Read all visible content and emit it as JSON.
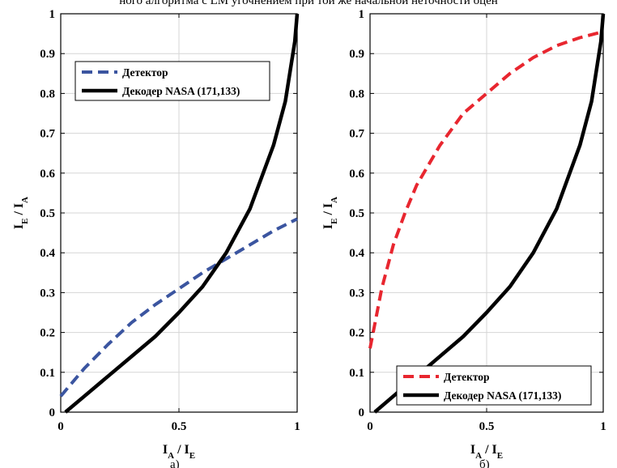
{
  "header_fragment": "ного алгоритма с LМ угочнением при той же начальной неточности оцен",
  "footer_fragments": [
    "а)",
    "б)"
  ],
  "chart_data": [
    {
      "type": "line",
      "xlabel": "I_A / I_E",
      "ylabel": "I_E / I_A",
      "xlim": [
        0,
        1
      ],
      "ylim": [
        0,
        1
      ],
      "xticks": [
        0,
        0.5,
        1
      ],
      "xtick_labels": [
        "0",
        "0.5",
        "1"
      ],
      "yticks": [
        0,
        0.1,
        0.2,
        0.3,
        0.4,
        0.5,
        0.6,
        0.7,
        0.8,
        0.9,
        1
      ],
      "ytick_labels": [
        "0",
        "0.1",
        "0.2",
        "0.3",
        "0.4",
        "0.5",
        "0.6",
        "0.7",
        "0.8",
        "0.9",
        "1"
      ],
      "grid": true,
      "legend_position": "top-left",
      "series": [
        {
          "name": "Детектор",
          "color": "#3b55a0",
          "style": "dashed",
          "x": [
            0,
            0.1,
            0.2,
            0.3,
            0.4,
            0.5,
            0.6,
            0.7,
            0.8,
            0.9,
            1.0
          ],
          "y": [
            0.04,
            0.11,
            0.17,
            0.225,
            0.27,
            0.31,
            0.35,
            0.385,
            0.42,
            0.455,
            0.485
          ]
        },
        {
          "name": "Декодер NASA (171,133)",
          "color": "#000000",
          "style": "solid",
          "x": [
            0.02,
            0.1,
            0.2,
            0.3,
            0.4,
            0.5,
            0.6,
            0.7,
            0.8,
            0.9,
            0.95,
            0.99,
            1.0
          ],
          "y": [
            0,
            0.04,
            0.09,
            0.14,
            0.19,
            0.25,
            0.315,
            0.4,
            0.51,
            0.67,
            0.78,
            0.93,
            1.0
          ]
        }
      ]
    },
    {
      "type": "line",
      "xlabel": "I_A / I_E",
      "ylabel": "I_E / I_A",
      "xlim": [
        0,
        1
      ],
      "ylim": [
        0,
        1
      ],
      "xticks": [
        0,
        0.5,
        1
      ],
      "xtick_labels": [
        "0",
        "0.5",
        "1"
      ],
      "yticks": [
        0,
        0.1,
        0.2,
        0.3,
        0.4,
        0.5,
        0.6,
        0.7,
        0.8,
        0.9,
        1
      ],
      "ytick_labels": [
        "0",
        "0.1",
        "0.2",
        "0.3",
        "0.4",
        "0.5",
        "0.6",
        "0.7",
        "0.8",
        "0.9",
        "1"
      ],
      "grid": true,
      "legend_position": "bottom-right",
      "series": [
        {
          "name": "Детектор",
          "color": "#e8262f",
          "style": "dashed",
          "x": [
            0,
            0.02,
            0.05,
            0.1,
            0.15,
            0.2,
            0.3,
            0.4,
            0.5,
            0.6,
            0.7,
            0.8,
            0.9,
            1.0
          ],
          "y": [
            0.16,
            0.22,
            0.31,
            0.42,
            0.5,
            0.57,
            0.67,
            0.75,
            0.8,
            0.85,
            0.89,
            0.92,
            0.94,
            0.955
          ]
        },
        {
          "name": "Декодер NASA (171,133)",
          "color": "#000000",
          "style": "solid",
          "x": [
            0.02,
            0.1,
            0.2,
            0.3,
            0.4,
            0.5,
            0.6,
            0.7,
            0.8,
            0.9,
            0.95,
            0.99,
            1.0
          ],
          "y": [
            0,
            0.04,
            0.09,
            0.14,
            0.19,
            0.25,
            0.315,
            0.4,
            0.51,
            0.67,
            0.78,
            0.93,
            1.0
          ]
        }
      ]
    }
  ]
}
